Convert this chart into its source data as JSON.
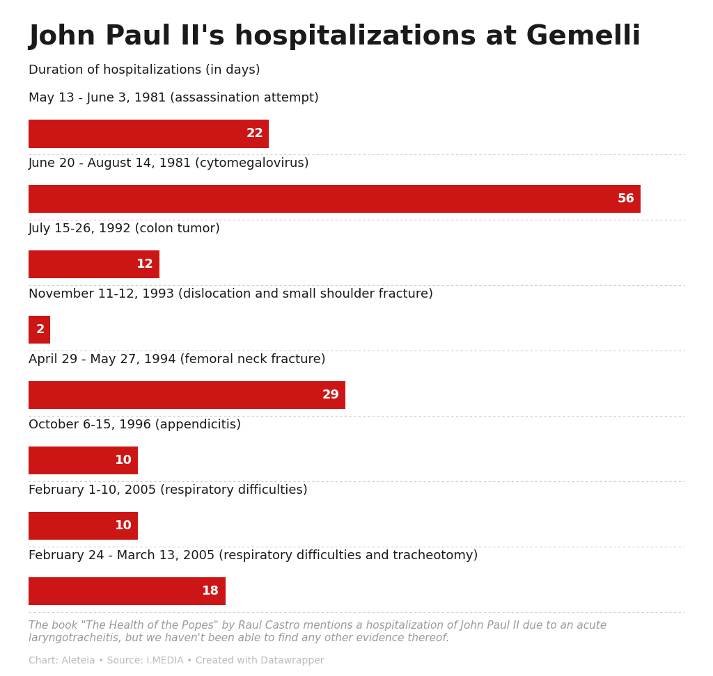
{
  "title": "John Paul II's hospitalizations at Gemelli",
  "subtitle": "Duration of hospitalizations (in days)",
  "categories": [
    "May 13 - June 3, 1981 (assassination attempt)",
    "June 20 - August 14, 1981 (cytomegalovirus)",
    "July 15-26, 1992 (colon tumor)",
    "November 11-12, 1993 (dislocation and small shoulder fracture)",
    "April 29 - May 27, 1994 (femoral neck fracture)",
    "October 6-15, 1996 (appendicitis)",
    "February 1-10, 2005 (respiratory difficulties)",
    "February 24 - March 13, 2005 (respiratory difficulties and tracheotomy)"
  ],
  "values": [
    22,
    56,
    12,
    2,
    29,
    10,
    10,
    18
  ],
  "bar_color": "#cc1616",
  "value_label_color": "#ffffff",
  "value_label_fontsize": 13,
  "category_label_fontsize": 13,
  "title_fontsize": 28,
  "subtitle_fontsize": 13,
  "background_color": "#ffffff",
  "text_color": "#1a1a1a",
  "footnote": "The book \"The Health of the Popes\" by Raul Castro mentions a hospitalization of John Paul II due to an acute\nlaryngotracheitis, but we haven't been able to find any other evidence thereof.",
  "source_line": "Chart: Aleteia • Source: I.MEDIA • Created with Datawrapper",
  "footnote_color": "#999999",
  "source_color": "#bbbbbb",
  "footnote_fontsize": 11,
  "source_fontsize": 10,
  "separator_color": "#cccccc",
  "xlim_max": 60
}
